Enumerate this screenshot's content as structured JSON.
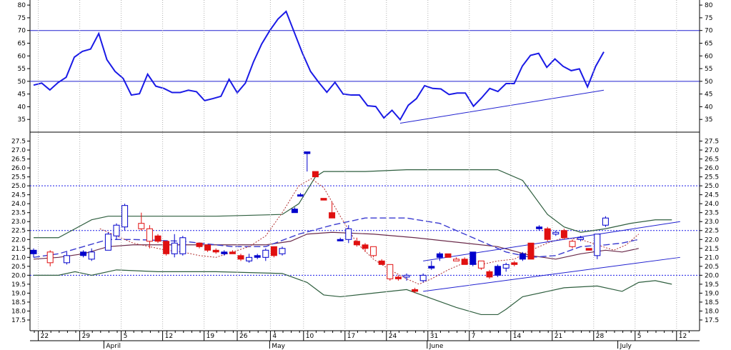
{
  "colors": {
    "rsi": "#1a1ae6",
    "reference_line": "#2020d0",
    "dotted_level": "#1a1ae6",
    "up_candle": "#0000cc",
    "down_candle": "#e01010",
    "hollow_up": "#0000cc",
    "hollow_down": "#e01010",
    "bollinger": "#2e5e3e",
    "ma_short": "#b03030",
    "ma_mid": "#6a2a4a",
    "ma_long": "#3a3ad0",
    "trendline": "#2020d0",
    "grid": "#b0b0b0"
  },
  "chart_data": [
    {
      "type": "line",
      "name": "rsi-panel",
      "ylim": [
        30,
        82
      ],
      "yticks": [
        35,
        40,
        45,
        50,
        55,
        60,
        65,
        70,
        75,
        80
      ],
      "reference_levels": [
        50,
        70
      ],
      "series": [
        {
          "values": [
            48.5,
            49.3,
            46.6,
            49.5,
            51.6,
            59.5,
            61.8,
            62.7,
            68.8,
            58.5,
            53.9,
            51.1,
            44.6,
            45.1,
            52.8,
            48.1,
            47.2,
            45.6,
            45.6,
            46.5,
            45.9,
            42.4,
            43.2,
            44.1,
            50.8,
            45.5,
            49.3,
            57.7,
            64.7,
            70.0,
            74.5,
            77.5,
            69.3,
            61.1,
            53.9,
            49.6,
            45.7,
            49.6,
            45.0,
            44.6,
            44.6,
            40.4,
            40.1,
            35.6,
            38.6,
            34.9,
            40.6,
            43.2,
            48.3,
            47.2,
            47.0,
            44.8,
            45.4,
            45.4,
            40.2,
            43.5,
            47.2,
            46.0,
            49.1,
            49.1,
            56.0,
            60.2,
            61.0,
            55.5,
            58.8,
            55.9,
            54.2,
            54.9,
            47.8,
            55.9,
            61.6
          ]
        }
      ],
      "trendline": {
        "from": [
          45,
          33.5
        ],
        "to": [
          70,
          46.5
        ]
      }
    },
    {
      "type": "candlestick",
      "name": "price-panel",
      "ylim": [
        16.9,
        28.0
      ],
      "yticks": [
        17.5,
        18.0,
        18.5,
        19.0,
        19.5,
        20.0,
        20.5,
        21.0,
        21.5,
        22.0,
        22.5,
        23.0,
        23.5,
        24.0,
        24.5,
        25.0,
        25.5,
        26.0,
        26.5,
        27.0,
        27.5
      ],
      "reference_levels": [
        20.0,
        22.5,
        25.0
      ],
      "x_ticks": [
        {
          "label": "22",
          "i": 1
        },
        {
          "label": "29",
          "i": 6
        },
        {
          "label": "5",
          "i": 11
        },
        {
          "label": "12",
          "i": 16
        },
        {
          "label": "19",
          "i": 21
        },
        {
          "label": "26",
          "i": 25
        },
        {
          "label": "4",
          "i": 29
        },
        {
          "label": "10",
          "i": 33
        },
        {
          "label": "17",
          "i": 38
        },
        {
          "label": "24",
          "i": 43
        },
        {
          "label": "31",
          "i": 48
        },
        {
          "label": "7",
          "i": 53
        },
        {
          "label": "14",
          "i": 58
        },
        {
          "label": "21",
          "i": 63
        },
        {
          "label": "28",
          "i": 68
        },
        {
          "label": "5",
          "i": 73
        },
        {
          "label": "12",
          "i": 78
        }
      ],
      "months": [
        {
          "label": "April",
          "i": 9
        },
        {
          "label": "May",
          "i": 29
        },
        {
          "label": "June",
          "i": 48
        },
        {
          "label": "July",
          "i": 71
        }
      ],
      "candles": [
        [
          21.2,
          21.5,
          21.0,
          21.4,
          "fu"
        ],
        [
          21.3,
          21.4,
          20.5,
          20.7,
          "hd"
        ],
        [
          20.7,
          21.3,
          20.6,
          21.1,
          "hu"
        ],
        [
          21.1,
          21.4,
          21.0,
          21.3,
          "fu"
        ],
        [
          20.9,
          21.5,
          20.8,
          21.3,
          "hu"
        ],
        [
          21.4,
          22.4,
          21.4,
          22.3,
          "hu"
        ],
        [
          22.2,
          22.9,
          22.0,
          22.8,
          "hu"
        ],
        [
          22.7,
          24.0,
          22.5,
          23.9,
          "hu"
        ],
        [
          22.9,
          23.5,
          22.5,
          22.6,
          "hd"
        ],
        [
          22.6,
          22.8,
          21.5,
          21.9,
          "hd"
        ],
        [
          22.2,
          22.3,
          21.8,
          21.9,
          "fd"
        ],
        [
          21.9,
          21.9,
          21.1,
          21.2,
          "fd"
        ],
        [
          21.2,
          22.3,
          21.0,
          21.8,
          "hu"
        ],
        [
          21.2,
          22.2,
          21.1,
          22.1,
          "hu"
        ],
        [
          21.8,
          21.8,
          21.5,
          21.6,
          "fd"
        ],
        [
          21.7,
          21.7,
          21.3,
          21.4,
          "fd"
        ],
        [
          21.4,
          21.5,
          21.2,
          21.3,
          "fd"
        ],
        [
          21.3,
          21.4,
          21.1,
          21.2,
          "fu"
        ],
        [
          21.3,
          21.4,
          21.2,
          21.2,
          "fd"
        ],
        [
          21.1,
          21.2,
          20.8,
          20.9,
          "fd"
        ],
        [
          20.8,
          21.2,
          20.7,
          21.0,
          "hu"
        ],
        [
          21.0,
          21.2,
          20.9,
          21.1,
          "fu"
        ],
        [
          21.0,
          21.5,
          20.8,
          21.4,
          "hu"
        ],
        [
          21.6,
          21.6,
          21.0,
          21.1,
          "fd"
        ],
        [
          21.2,
          21.6,
          21.1,
          21.5,
          "hu"
        ],
        [
          23.5,
          23.8,
          23.5,
          23.7,
          "fu"
        ],
        [
          24.5,
          24.6,
          24.4,
          24.5,
          "fu"
        ],
        [
          26.8,
          26.9,
          25.8,
          26.9,
          "fu"
        ],
        [
          25.8,
          25.8,
          25.5,
          25.5,
          "fd"
        ],
        [
          24.3,
          24.3,
          24.2,
          24.2,
          "fd"
        ],
        [
          23.5,
          24.1,
          23.2,
          23.2,
          "fd"
        ],
        [
          22.0,
          22.1,
          21.9,
          22.0,
          "fu"
        ],
        [
          22.0,
          22.8,
          21.8,
          22.6,
          "hu"
        ],
        [
          21.9,
          22.1,
          21.6,
          21.7,
          "fd"
        ],
        [
          21.7,
          21.8,
          21.3,
          21.5,
          "fd"
        ],
        [
          21.6,
          21.6,
          21.0,
          21.1,
          "hd"
        ],
        [
          20.8,
          20.9,
          20.6,
          20.6,
          "fd"
        ],
        [
          20.6,
          20.6,
          19.7,
          19.8,
          "hd"
        ],
        [
          19.9,
          20.0,
          19.7,
          19.8,
          "fd"
        ],
        [
          19.9,
          20.1,
          19.7,
          20.0,
          "hu"
        ],
        [
          19.2,
          19.3,
          19.0,
          19.1,
          "fd"
        ],
        [
          19.7,
          20.1,
          19.6,
          20.0,
          "hu"
        ],
        [
          20.4,
          20.8,
          20.3,
          20.5,
          "fu"
        ],
        [
          21.0,
          21.3,
          20.8,
          21.2,
          "fu"
        ],
        [
          21.2,
          21.2,
          21.0,
          21.0,
          "fd"
        ],
        [
          20.9,
          21.0,
          20.8,
          20.8,
          "hd"
        ],
        [
          20.9,
          21.0,
          20.6,
          20.6,
          "fd"
        ],
        [
          20.6,
          21.3,
          20.5,
          21.3,
          "fu"
        ],
        [
          20.8,
          20.8,
          20.3,
          20.4,
          "hd"
        ],
        [
          20.2,
          20.3,
          19.8,
          19.9,
          "fd"
        ],
        [
          20.0,
          20.6,
          19.9,
          20.5,
          "fu"
        ],
        [
          20.4,
          20.7,
          20.2,
          20.6,
          "hu"
        ],
        [
          20.6,
          20.8,
          20.5,
          20.7,
          "fd"
        ],
        [
          20.9,
          21.3,
          20.8,
          21.2,
          "fu"
        ],
        [
          21.8,
          21.8,
          20.9,
          20.9,
          "fd"
        ],
        [
          22.6,
          22.8,
          22.5,
          22.7,
          "fu"
        ],
        [
          22.6,
          22.7,
          21.9,
          22.0,
          "fd"
        ],
        [
          22.3,
          22.5,
          22.2,
          22.4,
          "hu"
        ],
        [
          22.5,
          22.6,
          22.0,
          22.1,
          "fd"
        ],
        [
          21.9,
          22.0,
          21.5,
          21.6,
          "hd"
        ],
        [
          22.1,
          22.2,
          21.9,
          22.0,
          "hu"
        ],
        [
          21.5,
          21.5,
          21.4,
          21.4,
          "fd"
        ],
        [
          21.1,
          22.3,
          20.9,
          22.3,
          "hu"
        ],
        [
          22.8,
          23.3,
          22.7,
          23.2,
          "hu"
        ]
      ],
      "candle_x": [
        0,
        2,
        4,
        6,
        7,
        9,
        10,
        11,
        13,
        14,
        15,
        16,
        17,
        18,
        20,
        21,
        22,
        23,
        24,
        25,
        26,
        27,
        28,
        29,
        30,
        31.5,
        32.2,
        33,
        34,
        35,
        36,
        37,
        38,
        39,
        40,
        41,
        42,
        43,
        44,
        45,
        46,
        47,
        48,
        49,
        50,
        51,
        52,
        53,
        54,
        55,
        56,
        57,
        58,
        59,
        60,
        61,
        62,
        63,
        64,
        65,
        66,
        67,
        68,
        69
      ],
      "bollinger_upper": [
        [
          0,
          22.1
        ],
        [
          3,
          22.1
        ],
        [
          5,
          22.6
        ],
        [
          7,
          23.1
        ],
        [
          9,
          23.3
        ],
        [
          14,
          23.3
        ],
        [
          22,
          23.3
        ],
        [
          30,
          23.4
        ],
        [
          32,
          24.0
        ],
        [
          34,
          25.5
        ],
        [
          35,
          25.8
        ],
        [
          40,
          25.8
        ],
        [
          45,
          25.9
        ],
        [
          50,
          25.9
        ],
        [
          56,
          25.9
        ],
        [
          59,
          25.3
        ],
        [
          62,
          23.4
        ],
        [
          64,
          22.7
        ],
        [
          66,
          22.4
        ],
        [
          69,
          22.6
        ],
        [
          72,
          22.9
        ],
        [
          75,
          23.1
        ],
        [
          77,
          23.1
        ]
      ],
      "bollinger_lower": [
        [
          0,
          20.0
        ],
        [
          3,
          20.0
        ],
        [
          5,
          20.2
        ],
        [
          7,
          20.0
        ],
        [
          10,
          20.3
        ],
        [
          15,
          20.2
        ],
        [
          22,
          20.2
        ],
        [
          30,
          20.1
        ],
        [
          33,
          19.6
        ],
        [
          35,
          18.9
        ],
        [
          37,
          18.8
        ],
        [
          41,
          19.0
        ],
        [
          45,
          19.2
        ],
        [
          48,
          18.7
        ],
        [
          51,
          18.2
        ],
        [
          54,
          17.8
        ],
        [
          56,
          17.8
        ],
        [
          57,
          18.1
        ],
        [
          59,
          18.8
        ],
        [
          62,
          19.1
        ],
        [
          64,
          19.3
        ],
        [
          68,
          19.4
        ],
        [
          71,
          19.1
        ],
        [
          73,
          19.6
        ],
        [
          75,
          19.7
        ],
        [
          77,
          19.5
        ]
      ],
      "ma_short": [
        [
          8,
          22.6
        ],
        [
          10,
          22.2
        ],
        [
          12,
          21.8
        ],
        [
          14,
          21.6
        ],
        [
          16,
          21.4
        ],
        [
          18,
          21.3
        ],
        [
          20,
          21.1
        ],
        [
          22,
          21.0
        ],
        [
          24,
          21.3
        ],
        [
          26,
          21.6
        ],
        [
          28,
          22.2
        ],
        [
          30,
          23.5
        ],
        [
          32,
          25.0
        ],
        [
          33.5,
          25.4
        ],
        [
          35,
          24.9
        ],
        [
          37,
          23.3
        ],
        [
          39,
          21.8
        ],
        [
          41,
          20.9
        ],
        [
          43,
          20.3
        ],
        [
          45,
          19.8
        ],
        [
          46.5,
          19.5
        ],
        [
          48,
          19.8
        ],
        [
          50,
          20.3
        ],
        [
          52,
          20.7
        ],
        [
          54,
          20.6
        ],
        [
          56,
          20.8
        ],
        [
          58,
          20.9
        ],
        [
          60,
          21.4
        ],
        [
          62,
          21.8
        ],
        [
          64,
          22.1
        ],
        [
          66,
          22.0
        ],
        [
          68,
          21.7
        ],
        [
          70,
          21.4
        ],
        [
          71.5,
          21.7
        ],
        [
          73,
          22.3
        ]
      ],
      "ma_mid": [
        [
          0,
          20.9
        ],
        [
          3,
          21.0
        ],
        [
          6,
          21.2
        ],
        [
          9,
          21.6
        ],
        [
          12,
          21.7
        ],
        [
          18,
          21.7
        ],
        [
          24,
          21.7
        ],
        [
          28,
          21.7
        ],
        [
          31,
          21.9
        ],
        [
          33,
          22.3
        ],
        [
          36,
          22.4
        ],
        [
          41,
          22.3
        ],
        [
          46,
          22.1
        ],
        [
          52,
          21.8
        ],
        [
          56,
          21.6
        ],
        [
          60,
          21.1
        ],
        [
          63,
          20.9
        ],
        [
          66,
          21.2
        ],
        [
          69,
          21.4
        ],
        [
          71,
          21.3
        ],
        [
          73,
          21.5
        ]
      ],
      "ma_long": [
        [
          0,
          21.0
        ],
        [
          3,
          21.2
        ],
        [
          6,
          21.6
        ],
        [
          9,
          22.0
        ],
        [
          12,
          22.0
        ],
        [
          18,
          21.9
        ],
        [
          24,
          21.6
        ],
        [
          28,
          21.6
        ],
        [
          32,
          22.3
        ],
        [
          36,
          22.8
        ],
        [
          40,
          23.2
        ],
        [
          45,
          23.2
        ],
        [
          49,
          22.9
        ],
        [
          53,
          22.1
        ],
        [
          57,
          21.3
        ],
        [
          60,
          21.0
        ],
        [
          63,
          21.1
        ],
        [
          66,
          21.6
        ],
        [
          69,
          21.7
        ],
        [
          71,
          21.8
        ],
        [
          73,
          22.0
        ]
      ],
      "trendlines": [
        {
          "from": [
            47,
            19.1
          ],
          "to": [
            78,
            21.0
          ]
        },
        {
          "from": [
            47,
            20.8
          ],
          "to": [
            78,
            23.0
          ]
        }
      ]
    }
  ]
}
